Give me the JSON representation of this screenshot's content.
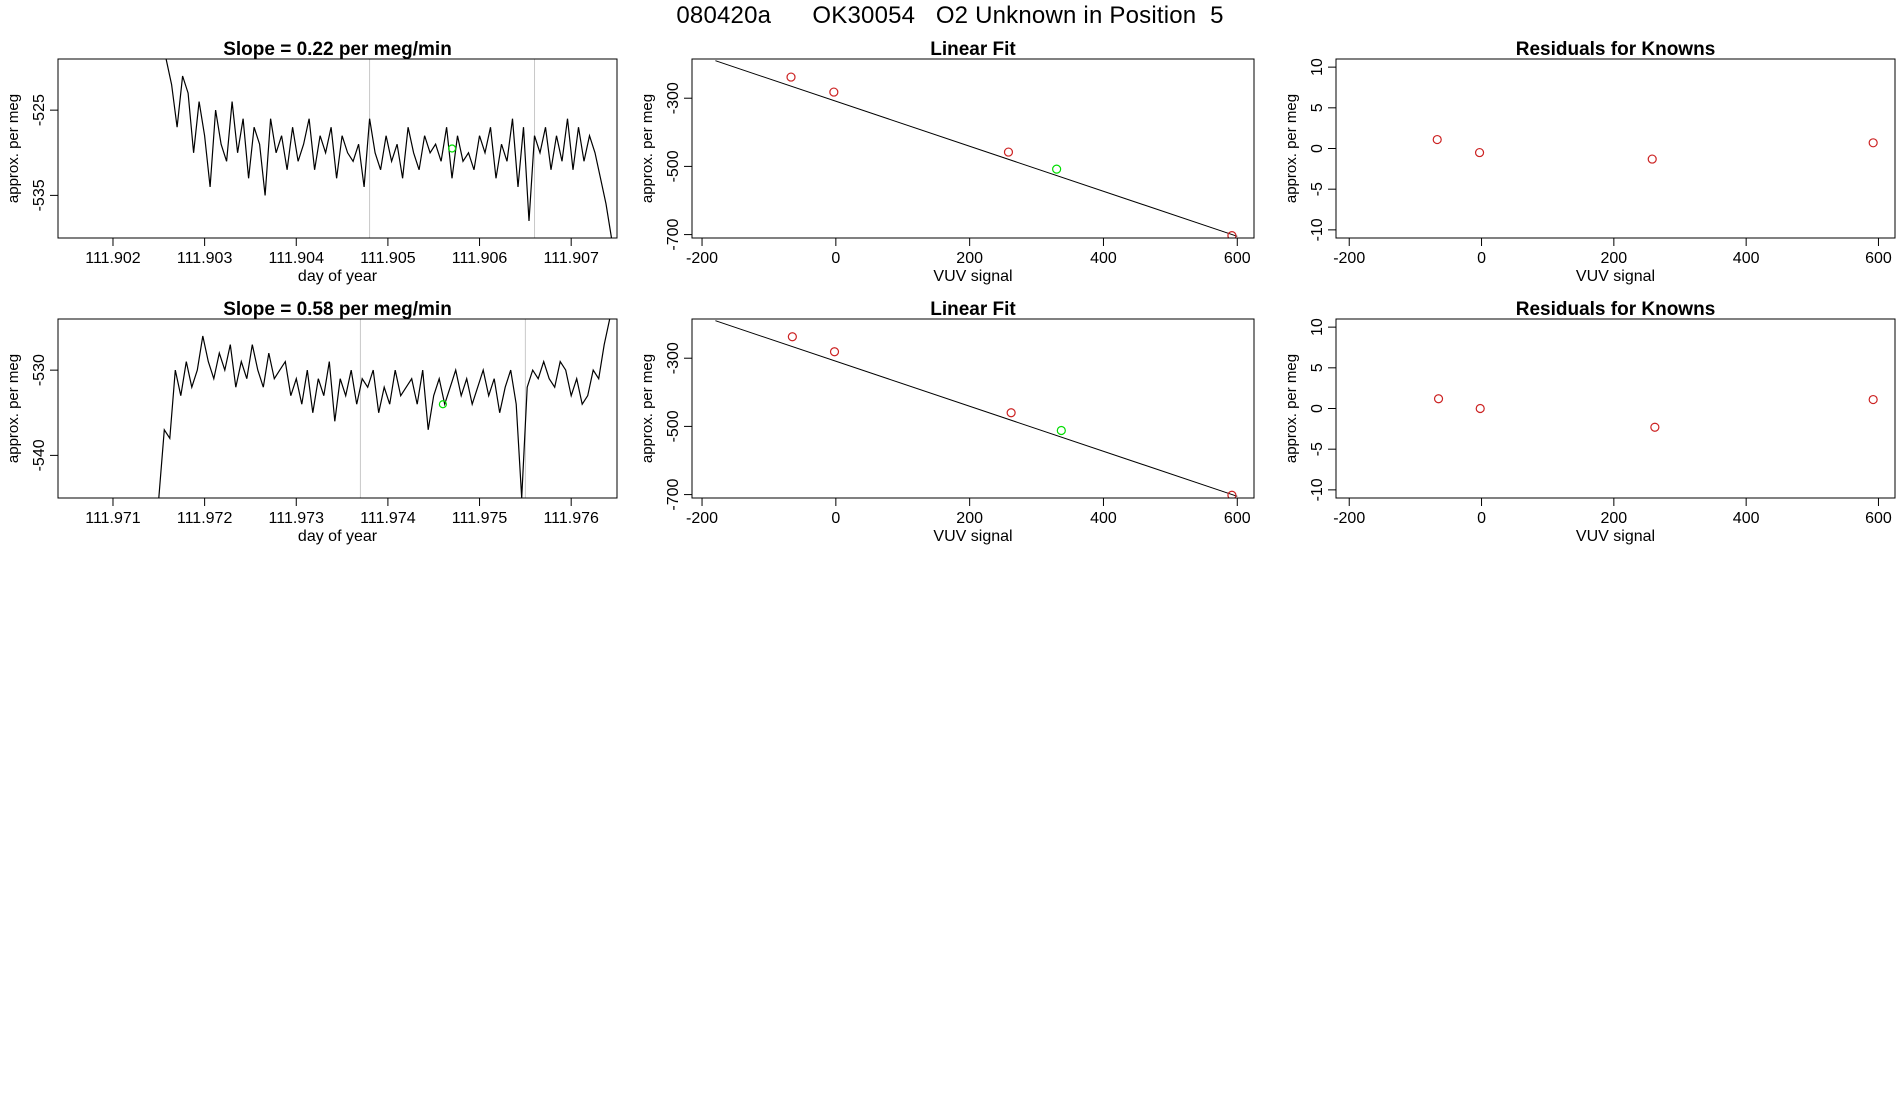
{
  "page": {
    "title": "080420a      OK30054   O2 Unknown in Position  5"
  },
  "chart_data": [
    {
      "type": "line",
      "panel": "timeseries",
      "title": "Slope =  0.22  per meg/min",
      "xlabel": "day of year",
      "ylabel": "approx. per meg",
      "xlim": [
        111.9014,
        111.9075
      ],
      "ylim": [
        -540,
        -519
      ],
      "xticks": [
        111.902,
        111.903,
        111.904,
        111.905,
        111.906,
        111.907
      ],
      "xtick_labels": [
        "111.902",
        "111.903",
        "111.904",
        "111.905",
        "111.906",
        "111.907"
      ],
      "yticks": [
        -525,
        -535
      ],
      "ytick_labels": [
        "-525",
        "-535"
      ],
      "vlines": [
        111.9048,
        111.9066
      ],
      "marker": {
        "x": 111.9057,
        "y": -529.5,
        "color": "#00dd00"
      },
      "series": [
        {
          "color": "#000000",
          "x": [
            111.90258,
            111.90264,
            111.9027,
            111.90276,
            111.90282,
            111.90288,
            111.90294,
            111.903,
            111.90306,
            111.90312,
            111.90318,
            111.90324,
            111.9033,
            111.90336,
            111.90342,
            111.90348,
            111.90354,
            111.9036,
            111.90366,
            111.90372,
            111.90378,
            111.90384,
            111.9039,
            111.90396,
            111.90402,
            111.90408,
            111.90414,
            111.9042,
            111.90426,
            111.90432,
            111.90438,
            111.90444,
            111.9045,
            111.90456,
            111.90462,
            111.90468,
            111.90474,
            111.9048,
            111.90486,
            111.90492,
            111.90498,
            111.90504,
            111.9051,
            111.90516,
            111.90522,
            111.90528,
            111.90534,
            111.9054,
            111.90546,
            111.90552,
            111.90558,
            111.90564,
            111.9057,
            111.90576,
            111.90582,
            111.90588,
            111.90594,
            111.906,
            111.90606,
            111.90612,
            111.90618,
            111.90624,
            111.9063,
            111.90636,
            111.90642,
            111.90648,
            111.90654,
            111.9066,
            111.90666,
            111.90672,
            111.90678,
            111.90684,
            111.9069,
            111.90696,
            111.90702,
            111.90708,
            111.90714,
            111.9072,
            111.90726,
            111.90732,
            111.90738,
            111.90744
          ],
          "y": [
            -519,
            -522,
            -527,
            -521,
            -523,
            -530,
            -524,
            -528,
            -534,
            -525,
            -529,
            -531,
            -524,
            -530,
            -526,
            -533,
            -527,
            -529,
            -535,
            -526,
            -530,
            -528,
            -532,
            -527,
            -531,
            -529,
            -526,
            -532,
            -528,
            -530,
            -527,
            -533,
            -528,
            -530,
            -531,
            -529,
            -534,
            -526,
            -530,
            -532,
            -528,
            -531,
            -529,
            -533,
            -527,
            -530,
            -532,
            -528,
            -530,
            -529,
            -531,
            -527,
            -533,
            -528,
            -531,
            -530,
            -532,
            -528,
            -530,
            -527,
            -533,
            -529,
            -531,
            -526,
            -534,
            -527,
            -538,
            -528,
            -530,
            -527,
            -532,
            -528,
            -531,
            -526,
            -532,
            -527,
            -531,
            -528,
            -530,
            -533,
            -536,
            -540
          ]
        }
      ]
    },
    {
      "type": "scatter",
      "panel": "linear-fit",
      "title": "Linear Fit",
      "xlabel": "VUV signal",
      "ylabel": "approx. per meg",
      "xlim": [
        -215,
        625
      ],
      "ylim": [
        -710,
        -185
      ],
      "xticks": [
        -200,
        0,
        200,
        400,
        600
      ],
      "xtick_labels": [
        "-200",
        "0",
        "200",
        "400",
        "600"
      ],
      "yticks": [
        -300,
        -500,
        -700
      ],
      "ytick_labels": [
        "-300",
        "-500",
        "-700"
      ],
      "fit_line": {
        "x": [
          -180,
          600
        ],
        "y": [
          -190,
          -705
        ]
      },
      "points": [
        {
          "x": -67,
          "y": -238,
          "color": "#cc2222"
        },
        {
          "x": -3,
          "y": -282,
          "color": "#cc2222"
        },
        {
          "x": 258,
          "y": -458,
          "color": "#cc2222"
        },
        {
          "x": 592,
          "y": -703,
          "color": "#cc2222"
        }
      ],
      "unknown_point": {
        "x": 330,
        "y": -508,
        "color": "#00dd00"
      }
    },
    {
      "type": "scatter",
      "panel": "residuals",
      "title": "Residuals for Knowns",
      "xlabel": "VUV signal",
      "ylabel": "approx. per meg",
      "xlim": [
        -220,
        625
      ],
      "ylim": [
        -11,
        11
      ],
      "xticks": [
        -200,
        0,
        200,
        400,
        600
      ],
      "xtick_labels": [
        "-200",
        "0",
        "200",
        "400",
        "600"
      ],
      "yticks": [
        10,
        5,
        0,
        -5,
        -10
      ],
      "ytick_labels": [
        "10",
        "5",
        "0",
        "-5",
        "-10"
      ],
      "points": [
        {
          "x": -67,
          "y": 1.1,
          "color": "#cc2222"
        },
        {
          "x": -3,
          "y": -0.5,
          "color": "#cc2222"
        },
        {
          "x": 258,
          "y": -1.3,
          "color": "#cc2222"
        },
        {
          "x": 592,
          "y": 0.7,
          "color": "#cc2222"
        }
      ]
    },
    {
      "type": "line",
      "panel": "timeseries",
      "title": "Slope =  0.58  per meg/min",
      "xlabel": "day of year",
      "ylabel": "approx. per meg",
      "xlim": [
        111.9704,
        111.9765
      ],
      "ylim": [
        -545,
        -524
      ],
      "xticks": [
        111.971,
        111.972,
        111.973,
        111.974,
        111.975,
        111.976
      ],
      "xtick_labels": [
        "111.971",
        "111.972",
        "111.973",
        "111.974",
        "111.975",
        "111.976"
      ],
      "yticks": [
        -530,
        -540
      ],
      "ytick_labels": [
        "-530",
        "-540"
      ],
      "vlines": [
        111.9737,
        111.9755
      ],
      "marker": {
        "x": 111.9746,
        "y": -534,
        "color": "#00dd00"
      },
      "series": [
        {
          "color": "#000000",
          "x": [
            111.9715,
            111.97156,
            111.97162,
            111.97168,
            111.97174,
            111.9718,
            111.97186,
            111.97192,
            111.97198,
            111.97204,
            111.9721,
            111.97216,
            111.97222,
            111.97228,
            111.97234,
            111.9724,
            111.97246,
            111.97252,
            111.97258,
            111.97264,
            111.9727,
            111.97276,
            111.97282,
            111.97288,
            111.97294,
            111.973,
            111.97306,
            111.97312,
            111.97318,
            111.97324,
            111.9733,
            111.97336,
            111.97342,
            111.97348,
            111.97354,
            111.9736,
            111.97366,
            111.97372,
            111.97378,
            111.97384,
            111.9739,
            111.97396,
            111.97402,
            111.97408,
            111.97414,
            111.9742,
            111.97426,
            111.97432,
            111.97438,
            111.97444,
            111.9745,
            111.97456,
            111.97462,
            111.97468,
            111.97474,
            111.9748,
            111.97486,
            111.97492,
            111.97498,
            111.97504,
            111.9751,
            111.97516,
            111.97522,
            111.97528,
            111.97534,
            111.9754,
            111.97546,
            111.97552,
            111.97558,
            111.97564,
            111.9757,
            111.97576,
            111.97582,
            111.97588,
            111.97594,
            111.976,
            111.97606,
            111.97612,
            111.97618,
            111.97624,
            111.9763,
            111.97636,
            111.97642
          ],
          "y": [
            -545,
            -537,
            -538,
            -530,
            -533,
            -529,
            -532,
            -530,
            -526,
            -529,
            -531,
            -528,
            -530,
            -527,
            -532,
            -529,
            -531,
            -527,
            -530,
            -532,
            -528,
            -531,
            -530,
            -529,
            -533,
            -531,
            -534,
            -530,
            -535,
            -531,
            -533,
            -529,
            -536,
            -531,
            -533,
            -530,
            -534,
            -531,
            -532,
            -530,
            -535,
            -532,
            -534,
            -530,
            -533,
            -532,
            -531,
            -534,
            -530,
            -537,
            -533,
            -531,
            -534,
            -532,
            -530,
            -533,
            -531,
            -534,
            -532,
            -530,
            -533,
            -531,
            -535,
            -532,
            -530,
            -534,
            -545,
            -532,
            -530,
            -531,
            -529,
            -531,
            -532,
            -529,
            -530,
            -533,
            -531,
            -534,
            -533,
            -530,
            -531,
            -527,
            -524
          ]
        }
      ]
    },
    {
      "type": "scatter",
      "panel": "linear-fit",
      "title": "Linear Fit",
      "xlabel": "VUV signal",
      "ylabel": "approx. per meg",
      "xlim": [
        -215,
        625
      ],
      "ylim": [
        -710,
        -185
      ],
      "xticks": [
        -200,
        0,
        200,
        400,
        600
      ],
      "xtick_labels": [
        "-200",
        "0",
        "200",
        "400",
        "600"
      ],
      "yticks": [
        -300,
        -500,
        -700
      ],
      "ytick_labels": [
        "-300",
        "-500",
        "-700"
      ],
      "fit_line": {
        "x": [
          -180,
          600
        ],
        "y": [
          -190,
          -705
        ]
      },
      "points": [
        {
          "x": -65,
          "y": -237,
          "color": "#cc2222"
        },
        {
          "x": -2,
          "y": -281,
          "color": "#cc2222"
        },
        {
          "x": 262,
          "y": -460,
          "color": "#cc2222"
        },
        {
          "x": 592,
          "y": -702,
          "color": "#cc2222"
        }
      ],
      "unknown_point": {
        "x": 337,
        "y": -512,
        "color": "#00dd00"
      }
    },
    {
      "type": "scatter",
      "panel": "residuals",
      "title": "Residuals for Knowns",
      "xlabel": "VUV signal",
      "ylabel": "approx. per meg",
      "xlim": [
        -220,
        625
      ],
      "ylim": [
        -11,
        11
      ],
      "xticks": [
        -200,
        0,
        200,
        400,
        600
      ],
      "xtick_labels": [
        "-200",
        "0",
        "200",
        "400",
        "600"
      ],
      "yticks": [
        10,
        5,
        0,
        -5,
        -10
      ],
      "ytick_labels": [
        "10",
        "5",
        "0",
        "-5",
        "-10"
      ],
      "points": [
        {
          "x": -65,
          "y": 1.2,
          "color": "#cc2222"
        },
        {
          "x": -2,
          "y": 0.0,
          "color": "#cc2222"
        },
        {
          "x": 262,
          "y": -2.3,
          "color": "#cc2222"
        },
        {
          "x": 592,
          "y": 1.1,
          "color": "#cc2222"
        }
      ]
    }
  ]
}
